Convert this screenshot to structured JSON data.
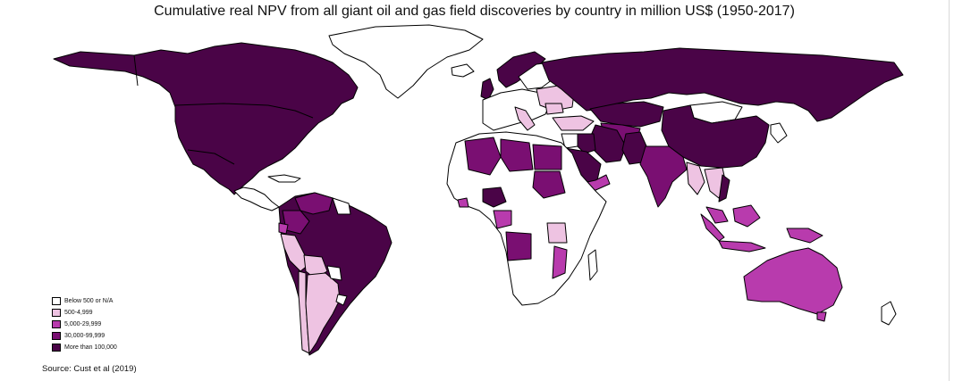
{
  "title": "Cumulative real NPV from all giant oil and gas field discoveries by country in million US$ (1950-2017)",
  "source": "Source: Cust et al (2019)",
  "colors": {
    "none": "#ffffff",
    "low": "#eec3e2",
    "mid": "#b83bad",
    "high": "#7a0f72",
    "top": "#4a0447"
  },
  "legend": [
    {
      "label": "Below 500 or N/A",
      "color": "#ffffff"
    },
    {
      "label": "500-4,999",
      "color": "#eec3e2"
    },
    {
      "label": "5,000-29,999",
      "color": "#b83bad"
    },
    {
      "label": "30,000-99,999",
      "color": "#7a0f72"
    },
    {
      "label": "More than 100,000",
      "color": "#4a0447"
    }
  ]
}
